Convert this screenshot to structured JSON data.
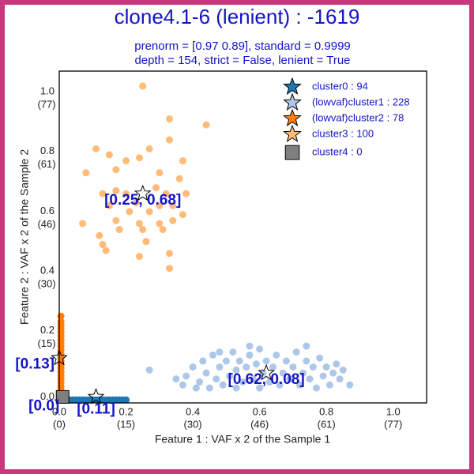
{
  "chart_data": {
    "type": "scatter",
    "title": "clone4.1-6 (lenient) : -1619",
    "subtitle": [
      "prenorm = [0.97 0.89], standard = 0.9999",
      "depth = 154, strict = False, lenient = True"
    ],
    "xlabel": "Feature 1 : VAF x 2 of the Sample 1",
    "ylabel": "Feature 2 : VAF x 2 of the Sample 2",
    "text_color": "#1414c8",
    "xlim": [
      0,
      1.1
    ],
    "ylim": [
      -0.02,
      1.09
    ],
    "xticks": [
      {
        "value": 0.0,
        "label": "0.0",
        "sublabel": "(0)"
      },
      {
        "value": 0.2,
        "label": "0.2",
        "sublabel": "(15)"
      },
      {
        "value": 0.4,
        "label": "0.4",
        "sublabel": "(30)"
      },
      {
        "value": 0.6,
        "label": "0.6",
        "sublabel": "(46)"
      },
      {
        "value": 0.8,
        "label": "0.8",
        "sublabel": "(61)"
      },
      {
        "value": 1.0,
        "label": "1.0",
        "sublabel": "(77)"
      }
    ],
    "yticks": [
      {
        "value": 0.0,
        "label": "0.0"
      },
      {
        "value": 0.2,
        "label": "0.2",
        "sublabel": "(15)"
      },
      {
        "value": 0.4,
        "label": "0.4",
        "sublabel": "(30)"
      },
      {
        "value": 0.6,
        "label": "0.6",
        "sublabel": "(46)"
      },
      {
        "value": 0.8,
        "label": "0.8",
        "sublabel": "(61)"
      },
      {
        "value": 1.0,
        "label": "1.0",
        "sublabel": "(77)"
      }
    ],
    "grid": false,
    "legend": "upper right",
    "series": [
      {
        "name": "cluster0 : 94",
        "color": "#1f77b4",
        "marker": "star",
        "x": [
          0.03,
          0.04,
          0.05,
          0.06,
          0.07,
          0.08,
          0.09,
          0.1,
          0.11,
          0.12,
          0.13,
          0.14,
          0.15,
          0.16,
          0.17,
          0.18,
          0.19,
          0.2
        ],
        "y": [
          -0.01,
          -0.01,
          -0.01,
          -0.01,
          -0.01,
          -0.01,
          -0.01,
          -0.01,
          -0.01,
          -0.01,
          -0.01,
          -0.01,
          -0.01,
          -0.01,
          -0.01,
          -0.01,
          -0.01,
          -0.01
        ],
        "centroid": [
          0.11,
          0.0
        ],
        "centroid_label": "[0.11]"
      },
      {
        "name": "(lowvaf)cluster1 : 228",
        "color": "#aec7e8",
        "marker": "star",
        "x": [
          0.27,
          0.37,
          0.38,
          0.4,
          0.42,
          0.43,
          0.44,
          0.45,
          0.46,
          0.47,
          0.48,
          0.49,
          0.5,
          0.51,
          0.52,
          0.53,
          0.53,
          0.54,
          0.55,
          0.56,
          0.57,
          0.58,
          0.59,
          0.6,
          0.6,
          0.61,
          0.62,
          0.63,
          0.64,
          0.65,
          0.66,
          0.67,
          0.68,
          0.69,
          0.7,
          0.71,
          0.72,
          0.73,
          0.74,
          0.75,
          0.76,
          0.77,
          0.78,
          0.79,
          0.8,
          0.81,
          0.82,
          0.83,
          0.84,
          0.85,
          0.87,
          0.74,
          0.57,
          0.48,
          0.35,
          0.41
        ],
        "y": [
          0.09,
          0.04,
          0.07,
          0.1,
          0.05,
          0.12,
          0.08,
          0.03,
          0.14,
          0.06,
          0.1,
          0.04,
          0.12,
          0.07,
          0.15,
          0.03,
          0.09,
          0.12,
          0.05,
          0.1,
          0.14,
          0.06,
          0.11,
          0.03,
          0.16,
          0.08,
          0.12,
          0.05,
          0.1,
          0.14,
          0.04,
          0.08,
          0.12,
          0.06,
          0.1,
          0.15,
          0.04,
          0.08,
          0.12,
          0.06,
          0.1,
          0.03,
          0.13,
          0.07,
          0.1,
          0.04,
          0.08,
          0.11,
          0.06,
          0.09,
          0.04,
          0.17,
          0.17,
          0.15,
          0.06,
          0.03
        ],
        "centroid": [
          0.62,
          0.08
        ],
        "centroid_label": "[0.62, 0.08]"
      },
      {
        "name": "(lowvaf)cluster2 : 78",
        "color": "#ff7f0e",
        "marker": "star",
        "x": [
          0.005,
          0.005,
          0.005,
          0.005,
          0.005,
          0.005,
          0.005,
          0.005,
          0.005,
          0.005,
          0.005,
          0.005,
          0.005,
          0.005,
          0.005,
          0.005,
          0.005,
          0.005,
          0.005,
          0.005,
          0.005,
          0.005,
          0.005
        ],
        "y": [
          0.0,
          0.012,
          0.024,
          0.036,
          0.048,
          0.06,
          0.072,
          0.084,
          0.096,
          0.108,
          0.12,
          0.132,
          0.144,
          0.156,
          0.168,
          0.18,
          0.192,
          0.204,
          0.216,
          0.228,
          0.24,
          0.252,
          0.27
        ],
        "centroid": [
          0.0,
          0.13
        ],
        "centroid_label": "[0.13]"
      },
      {
        "name": "cluster3 : 100",
        "color": "#ffbb78",
        "marker": "star",
        "x": [
          0.25,
          0.33,
          0.44,
          0.33,
          0.11,
          0.15,
          0.2,
          0.24,
          0.27,
          0.37,
          0.08,
          0.17,
          0.3,
          0.36,
          0.17,
          0.2,
          0.29,
          0.32,
          0.38,
          0.15,
          0.23,
          0.3,
          0.34,
          0.07,
          0.17,
          0.24,
          0.3,
          0.34,
          0.12,
          0.18,
          0.25,
          0.31,
          0.13,
          0.26,
          0.14,
          0.24,
          0.33,
          0.33,
          0.21,
          0.37,
          0.13,
          0.27
        ],
        "y": [
          1.04,
          0.93,
          0.91,
          0.86,
          0.83,
          0.81,
          0.79,
          0.8,
          0.83,
          0.79,
          0.75,
          0.76,
          0.75,
          0.73,
          0.69,
          0.68,
          0.7,
          0.68,
          0.68,
          0.64,
          0.65,
          0.64,
          0.64,
          0.58,
          0.59,
          0.58,
          0.58,
          0.59,
          0.54,
          0.56,
          0.56,
          0.56,
          0.51,
          0.52,
          0.49,
          0.47,
          0.48,
          0.43,
          0.62,
          0.61,
          0.68,
          0.62
        ],
        "centroid": [
          0.25,
          0.68
        ],
        "centroid_label": "[0.25, 0.68]"
      },
      {
        "name": "cluster4 : 0",
        "color": "#7f7f7f",
        "marker": "square",
        "x": [],
        "y": [],
        "centroid": [
          0.01,
          0.0
        ],
        "centroid_label": "[0.0]"
      }
    ]
  }
}
